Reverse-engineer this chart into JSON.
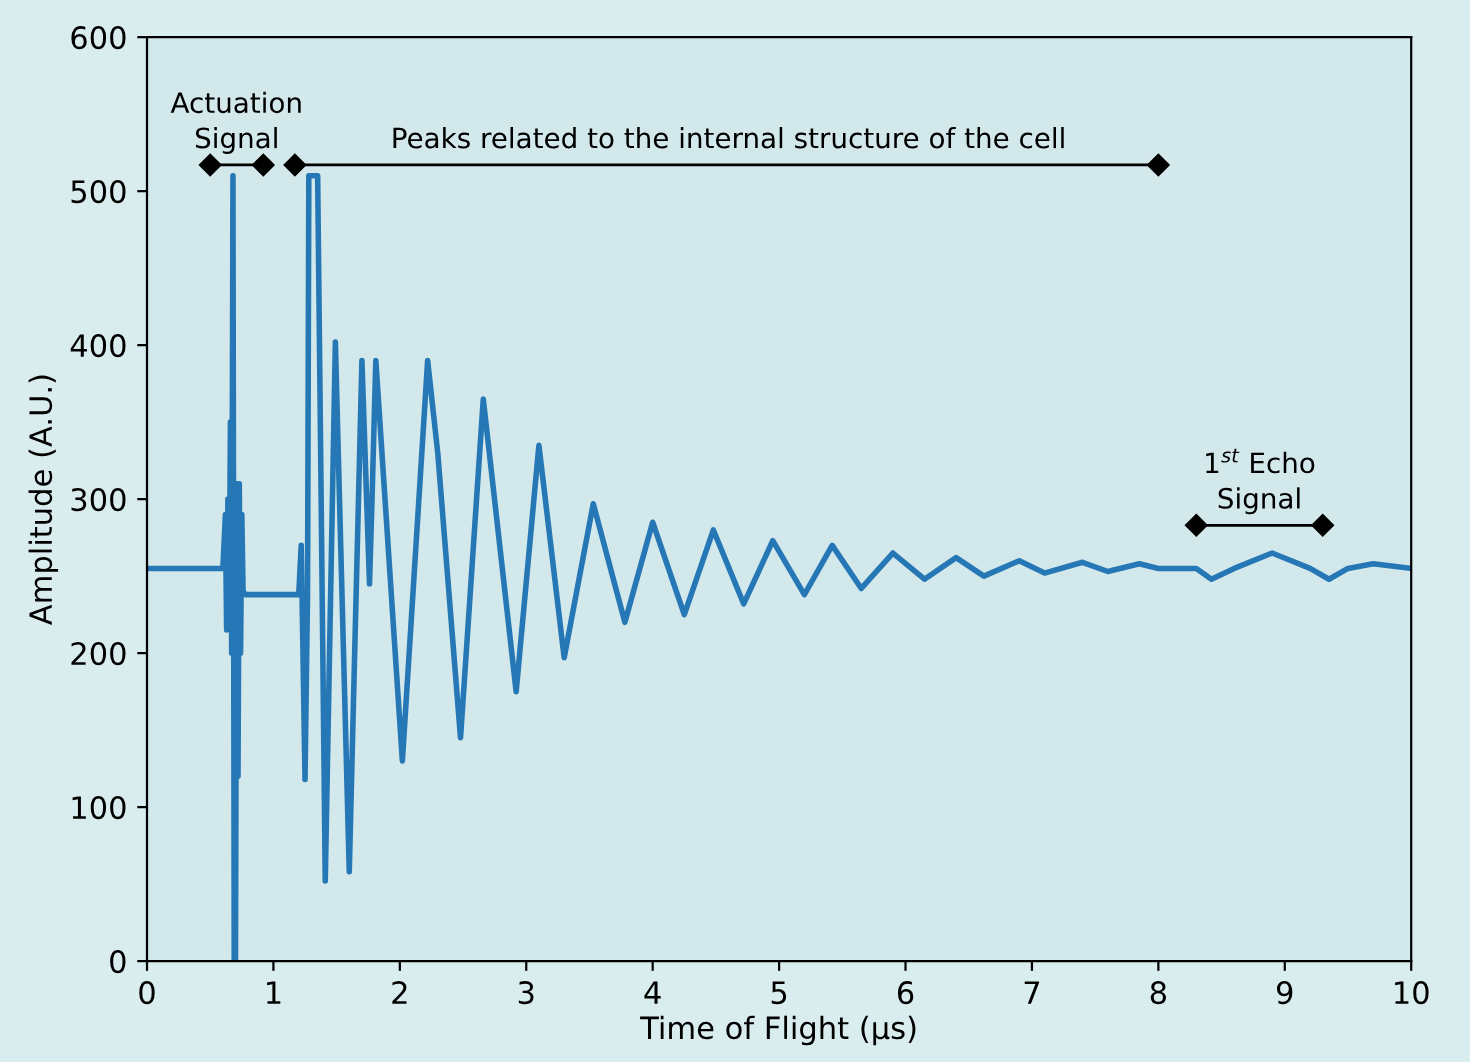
{
  "chart_data": {
    "type": "line",
    "xlabel": "Time of Flight (µs)",
    "ylabel": "Amplitude (A.U.)",
    "xlim": [
      0,
      10
    ],
    "ylim": [
      0,
      600
    ],
    "xticks": [
      0,
      1,
      2,
      3,
      4,
      5,
      6,
      7,
      8,
      9,
      10
    ],
    "yticks": [
      0,
      100,
      200,
      300,
      400,
      500,
      600
    ],
    "grid": false,
    "marker": "none",
    "series": [
      {
        "color": "#2677b5",
        "x": [
          0,
          0.6,
          0.62,
          0.63,
          0.64,
          0.65,
          0.66,
          0.67,
          0.68,
          0.69,
          0.7,
          0.71,
          0.72,
          0.73,
          0.74,
          0.75,
          0.76,
          0.78,
          1.2,
          1.22,
          1.25,
          1.27,
          1.28,
          1.35,
          1.41,
          1.49,
          1.6,
          1.7,
          1.76,
          1.78,
          1.81,
          2.02,
          2.22,
          2.3,
          2.48,
          2.66,
          2.92,
          3.1,
          3.3,
          3.53,
          3.78,
          4.0,
          4.25,
          4.48,
          4.72,
          4.95,
          5.2,
          5.42,
          5.65,
          5.9,
          6.15,
          6.4,
          6.62,
          6.9,
          7.1,
          7.4,
          7.6,
          7.85,
          8.0,
          8.3,
          8.42,
          8.6,
          8.9,
          9.2,
          9.35,
          9.5,
          9.7,
          10
        ],
        "values": [
          255,
          255,
          290,
          215,
          300,
          225,
          350,
          200,
          510,
          0,
          0,
          310,
          120,
          310,
          200,
          290,
          240,
          238,
          238,
          270,
          118,
          240,
          510,
          510,
          52,
          402,
          58,
          390,
          245,
          300,
          390,
          130,
          390,
          330,
          145,
          365,
          175,
          335,
          197,
          297,
          220,
          285,
          225,
          280,
          232,
          273,
          238,
          270,
          242,
          265,
          248,
          262,
          250,
          260,
          252,
          259,
          253,
          258,
          255,
          255,
          248,
          255,
          265,
          255,
          248,
          255,
          258,
          255
        ]
      },
      {
        "color": "#000000",
        "marker": "diamond",
        "x": [
          0.5,
          0.92
        ],
        "values": [
          517,
          517
        ]
      },
      {
        "color": "#000000",
        "marker": "diamond",
        "x": [
          1.17,
          8.0
        ],
        "values": [
          517,
          517
        ]
      },
      {
        "color": "#000000",
        "marker": "diamond",
        "x": [
          8.3,
          9.3
        ],
        "values": [
          283,
          283
        ]
      }
    ],
    "annotations": [
      {
        "text": "Actuation\nSignal",
        "x": 0.71,
        "y": 517
      },
      {
        "text": "Peaks related to the internal structure of the cell",
        "x": 4.6,
        "y": 517
      },
      {
        "text": "1$^{st}$ Echo\nSignal",
        "x": 8.8,
        "y": 283
      }
    ]
  }
}
